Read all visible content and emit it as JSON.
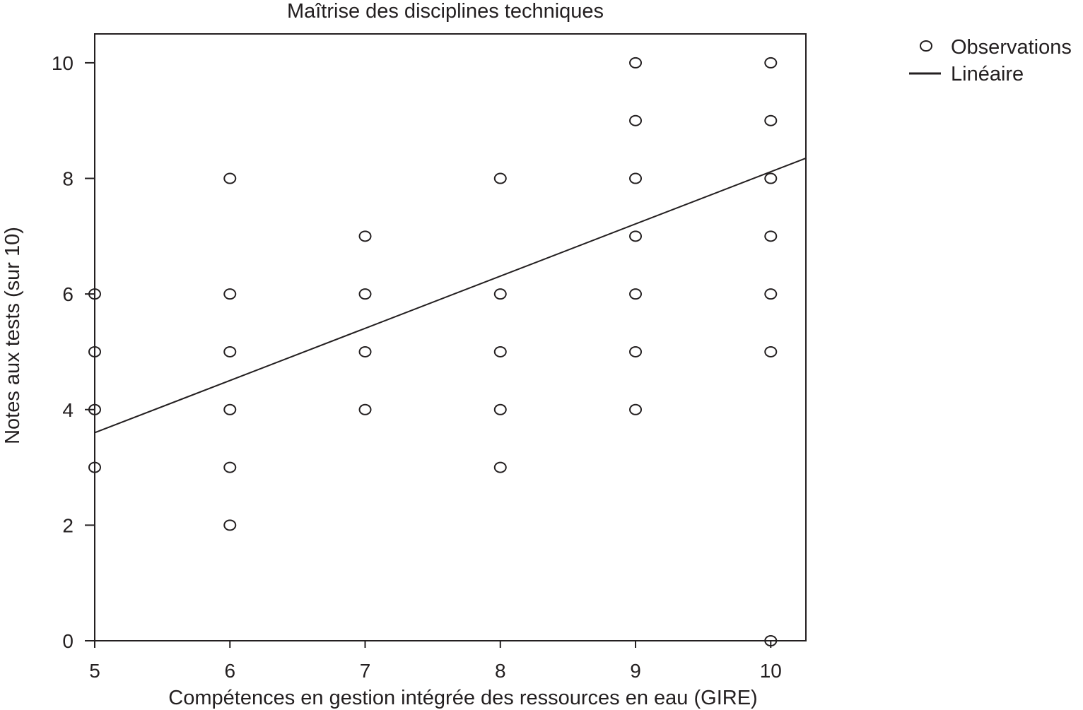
{
  "chart_data": {
    "type": "scatter",
    "title": "Maîtrise des disciplines techniques",
    "xlabel": "Compétences en gestion intégrée des ressources en eau (GIRE)",
    "ylabel": "Notes aux tests (sur 10)",
    "xlim": [
      5,
      10.26
    ],
    "ylim": [
      0,
      10.5
    ],
    "xticks": [
      "5",
      "6",
      "7",
      "8",
      "9",
      "10"
    ],
    "yticks": [
      "0",
      "2",
      "4",
      "6",
      "8",
      "10"
    ],
    "grid": false,
    "legend_position": "outside-top-right",
    "series": [
      {
        "name": "Observations",
        "marker": "hollow-circle",
        "points": [
          [
            5,
            6
          ],
          [
            5,
            5
          ],
          [
            5,
            4
          ],
          [
            5,
            3
          ],
          [
            6,
            8
          ],
          [
            6,
            6
          ],
          [
            6,
            5
          ],
          [
            6,
            4
          ],
          [
            6,
            3
          ],
          [
            6,
            2
          ],
          [
            7,
            7
          ],
          [
            7,
            6
          ],
          [
            7,
            5
          ],
          [
            7,
            4
          ],
          [
            8,
            8
          ],
          [
            8,
            6
          ],
          [
            8,
            5
          ],
          [
            8,
            4
          ],
          [
            8,
            3
          ],
          [
            9,
            10
          ],
          [
            9,
            9
          ],
          [
            9,
            8
          ],
          [
            9,
            7
          ],
          [
            9,
            6
          ],
          [
            9,
            5
          ],
          [
            9,
            4
          ],
          [
            10,
            10
          ],
          [
            10,
            9
          ],
          [
            10,
            8
          ],
          [
            10,
            7
          ],
          [
            10,
            6
          ],
          [
            10,
            5
          ],
          [
            10,
            0
          ]
        ]
      },
      {
        "name": "Linéaire",
        "type": "line",
        "points": [
          [
            5,
            3.6
          ],
          [
            10.26,
            8.35
          ]
        ]
      }
    ],
    "color": "#231f20"
  }
}
